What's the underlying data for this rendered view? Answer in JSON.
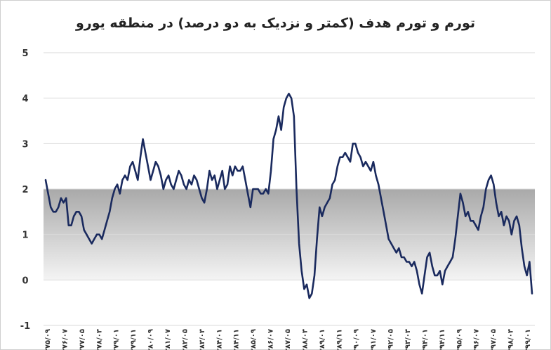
{
  "chart_data": {
    "type": "line",
    "title": "تورم و تورم هدف (کمتر و نزدیک به دو درصد) در منطقه یورو",
    "xlabel": "",
    "ylabel": "",
    "ylim": [
      -1,
      5
    ],
    "yticks": [
      "5",
      "4",
      "3",
      "2",
      "1",
      "0",
      "-1"
    ],
    "target_band": [
      0,
      2
    ],
    "grid": true,
    "legend": "none",
    "colors": {
      "line": "#1a2a5e",
      "band_top": "#a9a9a9",
      "band_bottom": "#f4f4f4",
      "grid": "#d9d9d9"
    },
    "x_tick_labels": [
      "۱۳۷۵/۰۹",
      "۱۳۷۶/۰۷",
      "۱۳۷۷/۰۵",
      "۱۳۷۸/۰۳",
      "۱۳۷۹/۰۱",
      "۱۳۷۹/۱۱",
      "۱۳۸۰/۰۹",
      "۱۳۸۱/۰۷",
      "۱۳۸۲/۰۵",
      "۱۳۸۳/۰۳",
      "۱۳۸۴/۰۱",
      "۱۳۸۴/۱۱",
      "۱۳۸۵/۰۹",
      "۱۳۸۶/۰۷",
      "۱۳۸۷/۰۵",
      "۱۳۸۸/۰۳",
      "۱۳۸۹/۰۱",
      "۱۳۸۹/۱۱",
      "۱۳۹۰/۰۹",
      "۱۳۹۱/۰۷",
      "۱۳۹۲/۰۵",
      "۱۳۹۳/۰۳",
      "۱۳۹۴/۰۱",
      "۱۳۹۴/۱۱",
      "۱۳۹۵/۰۹",
      "۱۳۹۶/۰۷",
      "۱۳۹۷/۰۵",
      "۱۳۹۸/۰۳",
      "۱۳۹۹/۰۱"
    ],
    "series": [
      {
        "name": "",
        "values": [
          2.2,
          1.9,
          1.6,
          1.5,
          1.5,
          1.6,
          1.8,
          1.7,
          1.8,
          1.2,
          1.2,
          1.4,
          1.5,
          1.5,
          1.4,
          1.1,
          1.0,
          0.9,
          0.8,
          0.9,
          1.0,
          1.0,
          0.9,
          1.1,
          1.3,
          1.5,
          1.8,
          2.0,
          2.1,
          1.9,
          2.2,
          2.3,
          2.2,
          2.5,
          2.6,
          2.4,
          2.2,
          2.7,
          3.1,
          2.8,
          2.5,
          2.2,
          2.4,
          2.6,
          2.5,
          2.3,
          2.0,
          2.2,
          2.3,
          2.1,
          2.0,
          2.2,
          2.4,
          2.3,
          2.1,
          2.0,
          2.2,
          2.1,
          2.3,
          2.2,
          2.0,
          1.8,
          1.7,
          2.0,
          2.4,
          2.2,
          2.3,
          2.0,
          2.2,
          2.4,
          2.0,
          2.1,
          2.5,
          2.3,
          2.5,
          2.4,
          2.4,
          2.5,
          2.2,
          1.9,
          1.6,
          2.0,
          2.0,
          2.0,
          1.9,
          1.9,
          2.0,
          1.9,
          2.4,
          3.1,
          3.3,
          3.6,
          3.3,
          3.8,
          4.0,
          4.1,
          4.0,
          3.6,
          2.0,
          0.8,
          0.2,
          -0.2,
          -0.1,
          -0.4,
          -0.3,
          0.1,
          0.9,
          1.6,
          1.4,
          1.6,
          1.7,
          1.8,
          2.1,
          2.2,
          2.5,
          2.7,
          2.7,
          2.8,
          2.7,
          2.6,
          3.0,
          3.0,
          2.8,
          2.7,
          2.5,
          2.6,
          2.5,
          2.4,
          2.6,
          2.3,
          2.1,
          1.8,
          1.5,
          1.2,
          0.9,
          0.8,
          0.7,
          0.6,
          0.7,
          0.5,
          0.5,
          0.4,
          0.4,
          0.3,
          0.4,
          0.2,
          -0.1,
          -0.3,
          0.1,
          0.5,
          0.6,
          0.3,
          0.1,
          0.1,
          0.2,
          -0.1,
          0.2,
          0.3,
          0.4,
          0.5,
          0.9,
          1.4,
          1.9,
          1.7,
          1.4,
          1.5,
          1.3,
          1.3,
          1.2,
          1.1,
          1.4,
          1.6,
          2.0,
          2.2,
          2.3,
          2.1,
          1.7,
          1.4,
          1.5,
          1.2,
          1.4,
          1.3,
          1.0,
          1.3,
          1.4,
          1.2,
          0.7,
          0.3,
          0.1,
          0.4,
          -0.3
        ]
      }
    ]
  }
}
